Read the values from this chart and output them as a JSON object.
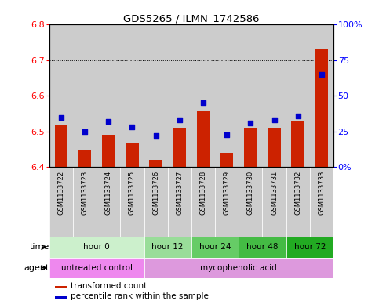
{
  "title": "GDS5265 / ILMN_1742586",
  "samples": [
    "GSM1133722",
    "GSM1133723",
    "GSM1133724",
    "GSM1133725",
    "GSM1133726",
    "GSM1133727",
    "GSM1133728",
    "GSM1133729",
    "GSM1133730",
    "GSM1133731",
    "GSM1133732",
    "GSM1133733"
  ],
  "bar_values": [
    6.52,
    6.45,
    6.49,
    6.47,
    6.42,
    6.51,
    6.56,
    6.44,
    6.51,
    6.51,
    6.53,
    6.73
  ],
  "dot_values": [
    35,
    25,
    32,
    28,
    22,
    33,
    45,
    23,
    31,
    33,
    36,
    65
  ],
  "bar_baseline": 6.4,
  "ylim": [
    6.4,
    6.8
  ],
  "y2lim": [
    0,
    100
  ],
  "yticks": [
    6.4,
    6.5,
    6.6,
    6.7,
    6.8
  ],
  "y2ticks": [
    0,
    25,
    50,
    75,
    100
  ],
  "y2ticklabels": [
    "0%",
    "25",
    "50",
    "75",
    "100%"
  ],
  "bar_color": "#cc2200",
  "dot_color": "#0000cc",
  "bar_width": 0.55,
  "time_groups": [
    {
      "label": "hour 0",
      "start": 0,
      "end": 4,
      "color": "#ccf0cc"
    },
    {
      "label": "hour 12",
      "start": 4,
      "end": 6,
      "color": "#99dd99"
    },
    {
      "label": "hour 24",
      "start": 6,
      "end": 8,
      "color": "#66cc66"
    },
    {
      "label": "hour 48",
      "start": 8,
      "end": 10,
      "color": "#44bb44"
    },
    {
      "label": "hour 72",
      "start": 10,
      "end": 12,
      "color": "#22aa22"
    }
  ],
  "agent_groups": [
    {
      "label": "untreated control",
      "start": 0,
      "end": 4,
      "color": "#ee88ee"
    },
    {
      "label": "mycophenolic acid",
      "start": 4,
      "end": 12,
      "color": "#dd99dd"
    }
  ],
  "xlabel_time": "time",
  "xlabel_agent": "agent",
  "sample_bg_color": "#cccccc",
  "plot_bg_color": "#ffffff",
  "grid_color": "#000000"
}
